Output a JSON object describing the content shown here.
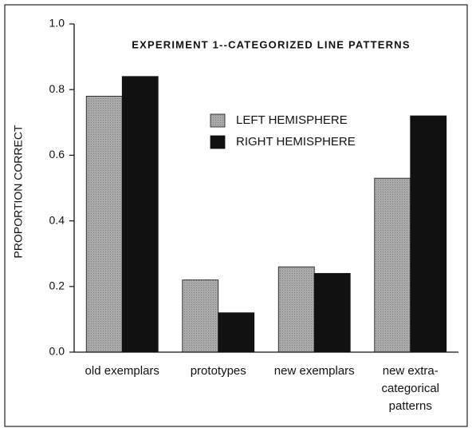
{
  "chart_data": {
    "type": "bar",
    "title": "EXPERIMENT 1--CATEGORIZED LINE PATTERNS",
    "y_label": "PROPORTION CORRECT",
    "categories": [
      "old exemplars",
      "prototypes",
      "new exemplars",
      "new extra-categorical patterns"
    ],
    "series": [
      {
        "name": "LEFT HEMISPHERE",
        "color": "#a9a9a9",
        "values": [
          0.78,
          0.22,
          0.26,
          0.53
        ]
      },
      {
        "name": "RIGHT HEMISPHERE",
        "color": "#111111",
        "values": [
          0.84,
          0.12,
          0.24,
          0.72
        ]
      }
    ],
    "ylim": [
      0,
      1
    ],
    "yticks": [
      {
        "value": 0,
        "label": "0.0"
      },
      0.2,
      0.4,
      0.6,
      0.8,
      {
        "value": 1,
        "label": "1.0"
      }
    ],
    "grid": false
  }
}
